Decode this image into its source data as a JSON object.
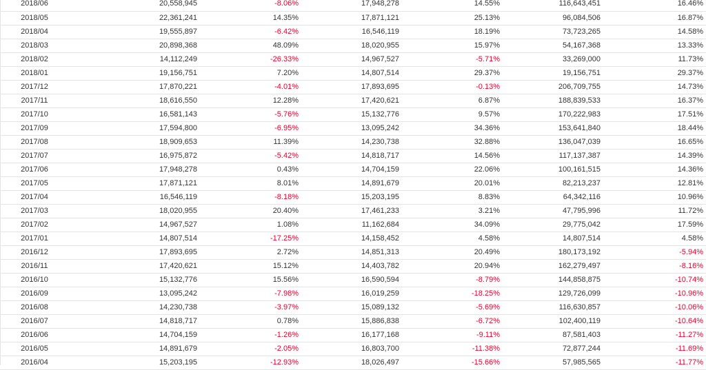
{
  "colors": {
    "text": "#333333",
    "negative": "#e8002d",
    "row_border": "#e4e4e4"
  },
  "rows": [
    [
      "2018/06",
      "20,558,945",
      "-8.06%",
      "17,948,278",
      "14.55%",
      "116,643,451",
      "16.46%"
    ],
    [
      "2018/05",
      "22,361,241",
      "14.35%",
      "17,871,121",
      "25.13%",
      "96,084,506",
      "16.87%"
    ],
    [
      "2018/04",
      "19,555,897",
      "-6.42%",
      "16,546,119",
      "18.19%",
      "73,723,265",
      "14.58%"
    ],
    [
      "2018/03",
      "20,898,368",
      "48.09%",
      "18,020,955",
      "15.97%",
      "54,167,368",
      "13.33%"
    ],
    [
      "2018/02",
      "14,112,249",
      "-26.33%",
      "14,967,527",
      "-5.71%",
      "33,269,000",
      "11.73%"
    ],
    [
      "2018/01",
      "19,156,751",
      "7.20%",
      "14,807,514",
      "29.37%",
      "19,156,751",
      "29.37%"
    ],
    [
      "2017/12",
      "17,870,221",
      "-4.01%",
      "17,893,695",
      "-0.13%",
      "206,709,755",
      "14.73%"
    ],
    [
      "2017/11",
      "18,616,550",
      "12.28%",
      "17,420,621",
      "6.87%",
      "188,839,533",
      "16.37%"
    ],
    [
      "2017/10",
      "16,581,143",
      "-5.76%",
      "15,132,776",
      "9.57%",
      "170,222,983",
      "17.51%"
    ],
    [
      "2017/09",
      "17,594,800",
      "-6.95%",
      "13,095,242",
      "34.36%",
      "153,641,840",
      "18.44%"
    ],
    [
      "2017/08",
      "18,909,653",
      "11.39%",
      "14,230,738",
      "32.88%",
      "136,047,039",
      "16.65%"
    ],
    [
      "2017/07",
      "16,975,872",
      "-5.42%",
      "14,818,717",
      "14.56%",
      "117,137,387",
      "14.39%"
    ],
    [
      "2017/06",
      "17,948,278",
      "0.43%",
      "14,704,159",
      "22.06%",
      "100,161,515",
      "14.36%"
    ],
    [
      "2017/05",
      "17,871,121",
      "8.01%",
      "14,891,679",
      "20.01%",
      "82,213,237",
      "12.81%"
    ],
    [
      "2017/04",
      "16,546,119",
      "-8.18%",
      "15,203,195",
      "8.83%",
      "64,342,116",
      "10.96%"
    ],
    [
      "2017/03",
      "18,020,955",
      "20.40%",
      "17,461,233",
      "3.21%",
      "47,795,996",
      "11.72%"
    ],
    [
      "2017/02",
      "14,967,527",
      "1.08%",
      "11,162,684",
      "34.09%",
      "29,775,042",
      "17.59%"
    ],
    [
      "2017/01",
      "14,807,514",
      "-17.25%",
      "14,158,452",
      "4.58%",
      "14,807,514",
      "4.58%"
    ],
    [
      "2016/12",
      "17,893,695",
      "2.72%",
      "14,851,313",
      "20.49%",
      "180,173,192",
      "-5.94%"
    ],
    [
      "2016/11",
      "17,420,621",
      "15.12%",
      "14,403,782",
      "20.94%",
      "162,279,497",
      "-8.16%"
    ],
    [
      "2016/10",
      "15,132,776",
      "15.56%",
      "16,590,594",
      "-8.79%",
      "144,858,875",
      "-10.74%"
    ],
    [
      "2016/09",
      "13,095,242",
      "-7.98%",
      "16,019,259",
      "-18.25%",
      "129,726,099",
      "-10.96%"
    ],
    [
      "2016/08",
      "14,230,738",
      "-3.97%",
      "15,089,132",
      "-5.69%",
      "116,630,857",
      "-10.06%"
    ],
    [
      "2016/07",
      "14,818,717",
      "0.78%",
      "15,886,838",
      "-6.72%",
      "102,400,119",
      "-10.64%"
    ],
    [
      "2016/06",
      "14,704,159",
      "-1.26%",
      "16,177,168",
      "-9.11%",
      "87,581,403",
      "-11.27%"
    ],
    [
      "2016/05",
      "14,891,679",
      "-2.05%",
      "16,803,700",
      "-11.38%",
      "72,877,244",
      "-11.69%"
    ],
    [
      "2016/04",
      "15,203,195",
      "-12.93%",
      "18,026,497",
      "-15.66%",
      "57,985,565",
      "-11.77%"
    ]
  ]
}
